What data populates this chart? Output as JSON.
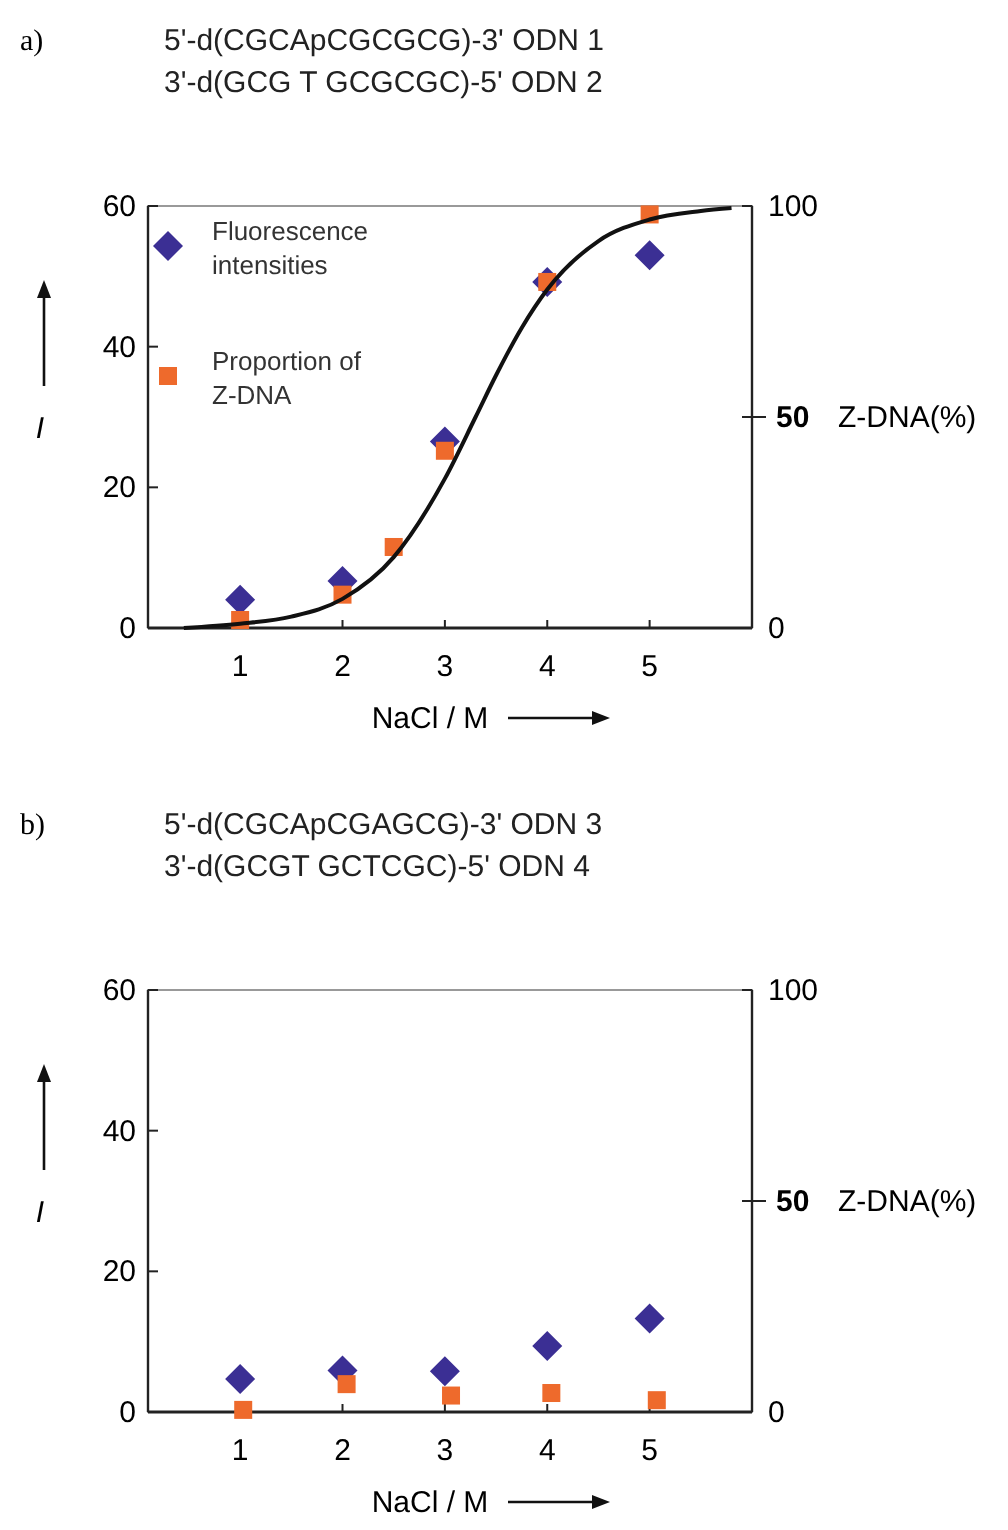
{
  "chart_data": [
    {
      "type": "scatter",
      "title": "a)",
      "annotations": [
        "5'-d(CGCApCGCGCG)-3'  ODN 1",
        "3'-d(GCG T GCGCGC)-5'  ODN 2"
      ],
      "xlabel": "NaCl / M",
      "ylabel": "I",
      "y2label": "Z-DNA(%)",
      "xlim": [
        0.1,
        6
      ],
      "xticks": [
        1,
        2,
        3,
        4,
        5
      ],
      "ylim": [
        0,
        60
      ],
      "yticks": [
        0,
        20,
        40,
        60
      ],
      "y2lim": [
        0,
        100
      ],
      "y2ticks": [
        0,
        50,
        100
      ],
      "legend": "top left",
      "series": [
        {
          "name": "Fluorescence intensities",
          "color": "#3b2f94",
          "marker": "diamond",
          "x": [
            1,
            2,
            3,
            4,
            5
          ],
          "values": [
            4,
            6.7,
            26.5,
            49.2,
            53
          ]
        },
        {
          "name": "Proportion of Z-DNA",
          "color": "#ee6a2c",
          "marker": "square",
          "axis": "y2",
          "x": [
            1,
            2,
            2.5,
            3,
            4,
            5
          ],
          "values": [
            1.9,
            7.9,
            19.2,
            42,
            82,
            98
          ]
        },
        {
          "type": "line",
          "color": "#111111",
          "marker": "none",
          "axis": "y2",
          "x": [
            0.45,
            1,
            1.5,
            2,
            2.5,
            3,
            3.3,
            3.5,
            3.75,
            4,
            4.5,
            5,
            5.5,
            5.8
          ],
          "values": [
            0,
            1,
            2.7,
            6.9,
            16.8,
            35.4,
            50,
            59.9,
            71.1,
            80.2,
            91.7,
            96.8,
            98.8,
            99.5
          ]
        }
      ]
    },
    {
      "type": "scatter",
      "title": "b)",
      "annotations": [
        "5'-d(CGCApCGAGCG)-3'  ODN 3",
        "3'-d(GCGT GCTCGC)-5'  ODN 4"
      ],
      "xlabel": "NaCl / M",
      "ylabel": "I",
      "y2label": "Z-DNA(%)",
      "xlim": [
        0.1,
        6
      ],
      "xticks": [
        1,
        2,
        3,
        4,
        5
      ],
      "ylim": [
        0,
        60
      ],
      "yticks": [
        0,
        20,
        40,
        60
      ],
      "y2lim": [
        0,
        100
      ],
      "y2ticks": [
        0,
        50,
        100
      ],
      "legend": false,
      "series": [
        {
          "color": "#3b2f94",
          "marker": "diamond",
          "x": [
            1,
            2,
            3,
            4,
            5
          ],
          "values": [
            4.7,
            5.9,
            5.8,
            9.4,
            13.3
          ]
        },
        {
          "color": "#ee6a2c",
          "marker": "square",
          "axis": "y2",
          "x": [
            1.03,
            2.04,
            3.06,
            4.04,
            5.07
          ],
          "values": [
            0.5,
            6.6,
            3.9,
            4.5,
            2.8
          ]
        }
      ]
    }
  ]
}
